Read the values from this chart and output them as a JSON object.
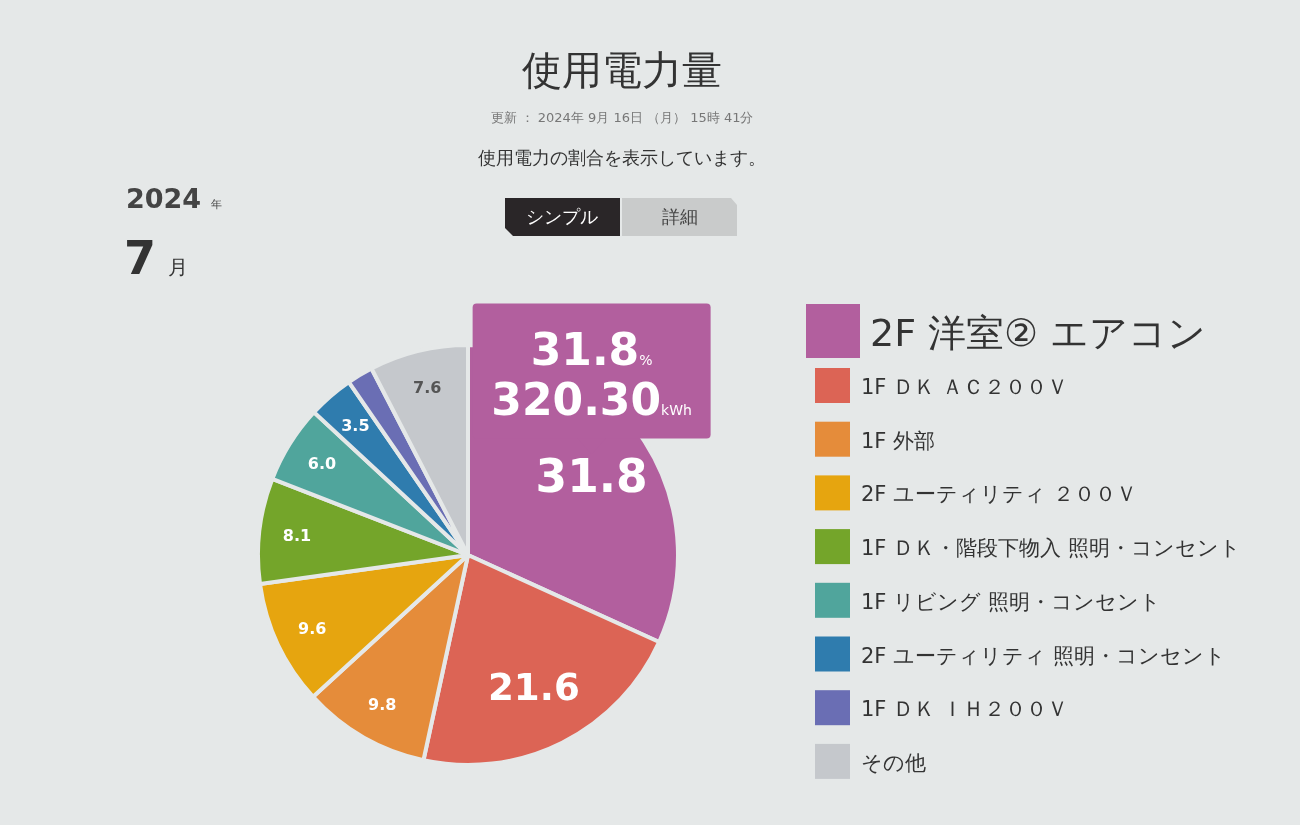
{
  "chart_data": {
    "type": "pie",
    "title": "使用電力量",
    "subtitle": "更新 ： 2024年 9月 16日 （月） 15時 41分",
    "categories": [
      "2F 洋室② エアコン",
      "1F ＤＫ ＡＣ２００Ｖ",
      "1F 外部",
      "2F ユーティリティ ２００Ｖ",
      "1F ＤＫ・階段下物入 照明・コンセント",
      "1F リビング 照明・コンセント",
      "2F ユーティリティ 照明・コンセント",
      "1F ＤＫ ＩＨ２００Ｖ",
      "その他"
    ],
    "values": [
      31.8,
      21.6,
      9.8,
      9.6,
      8.1,
      6.0,
      3.5,
      2.0,
      7.6
    ],
    "colors": [
      "#b25f9e",
      "#dc6455",
      "#e58c3a",
      "#e6a50f",
      "#74a52a",
      "#50a59c",
      "#2f7cae",
      "#6a6eb4",
      "#c5c8cc"
    ],
    "value_labels": [
      "31.8",
      "21.6",
      "9.8",
      "9.6",
      "8.1",
      "6.0",
      "3.5",
      null,
      "7.6"
    ],
    "legend": "right",
    "annotations": [
      "使用電力の割合を表示しています。",
      "2024 年",
      "7 月",
      "シンプル",
      "詳細",
      {
        "text": "31.8%\n320.30kWh",
        "x": "2F 洋室② エアコン"
      }
    ]
  }
}
